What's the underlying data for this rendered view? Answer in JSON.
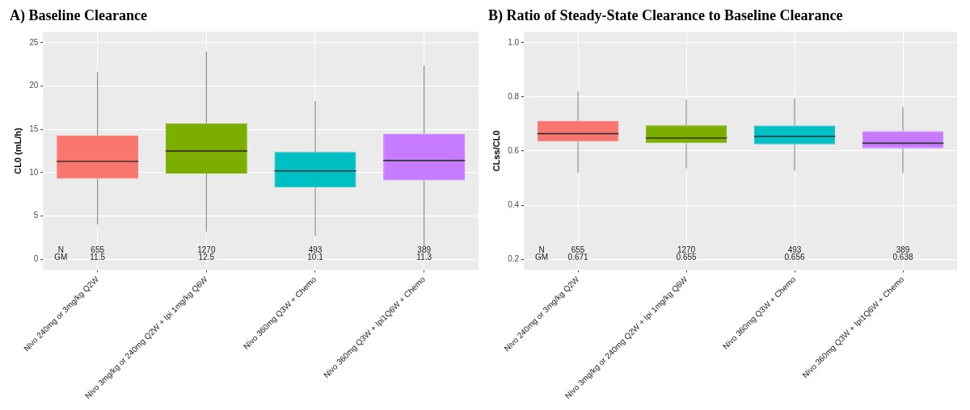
{
  "chart_data": [
    {
      "type": "box",
      "title": "A) Baseline Clearance",
      "ylabel": "CL0 (mL/h)",
      "categories": [
        "Nivo 240mg or 3mg/kg Q2W",
        "Nivo 3mg/kg or 240mg Q2W + Ipi 1mg/kg Q6W",
        "Nivo 360mg Q3W + Chemo",
        "Nivo 360mg Q3W + Ipi1Q6W + Chemo"
      ],
      "colors": [
        "#f8766d",
        "#7cae00",
        "#00bfc4",
        "#c77cff"
      ],
      "boxes": [
        {
          "low": 4.0,
          "q1": 9.3,
          "median": 11.3,
          "q3": 14.3,
          "high": 21.6
        },
        {
          "low": 3.2,
          "q1": 9.9,
          "median": 12.5,
          "q3": 15.7,
          "high": 24.0
        },
        {
          "low": 2.7,
          "q1": 8.3,
          "median": 10.2,
          "q3": 12.4,
          "high": 18.3
        },
        {
          "low": 1.5,
          "q1": 9.1,
          "median": 11.4,
          "q3": 14.5,
          "high": 22.4
        }
      ],
      "ylim": [
        -1.25,
        26.25
      ],
      "yticks": [
        0,
        5,
        10,
        15,
        20,
        25
      ],
      "grid": true,
      "annotations": [
        "N",
        "GM",
        "655",
        "11.5",
        "1270",
        "12.5",
        "493",
        "10.1",
        "389",
        "11.3"
      ]
    },
    {
      "type": "box",
      "title": "B) Ratio of Steady-State Clearance to Baseline Clearance",
      "ylabel": "CLss/CL0",
      "categories": [
        "Nivo 240mg or 3mg/kg Q2W",
        "Nivo 3mg/kg or 240mg Q2W + Ipi 1mg/kg Q6W",
        "Nivo 360mg Q3W + Chemo",
        "Nivo 360mg Q3W + Ipi1Q6W + Chemo"
      ],
      "colors": [
        "#f8766d",
        "#7cae00",
        "#00bfc4",
        "#c77cff"
      ],
      "boxes": [
        {
          "low": 0.52,
          "q1": 0.635,
          "median": 0.664,
          "q3": 0.711,
          "high": 0.82
        },
        {
          "low": 0.535,
          "q1": 0.629,
          "median": 0.648,
          "q3": 0.695,
          "high": 0.79
        },
        {
          "low": 0.527,
          "q1": 0.625,
          "median": 0.654,
          "q3": 0.694,
          "high": 0.794
        },
        {
          "low": 0.519,
          "q1": 0.61,
          "median": 0.629,
          "q3": 0.673,
          "high": 0.762
        }
      ],
      "ylim": [
        0.16,
        1.04
      ],
      "yticks": [
        0.2,
        0.4,
        0.6,
        0.8,
        {
          "value": 1.0,
          "label": "1.0"
        }
      ],
      "grid": true,
      "annotations": [
        "N",
        "GM",
        "655",
        "0.671",
        "1270",
        "0.655",
        "493",
        "0.656",
        "389",
        "0.638"
      ]
    }
  ]
}
